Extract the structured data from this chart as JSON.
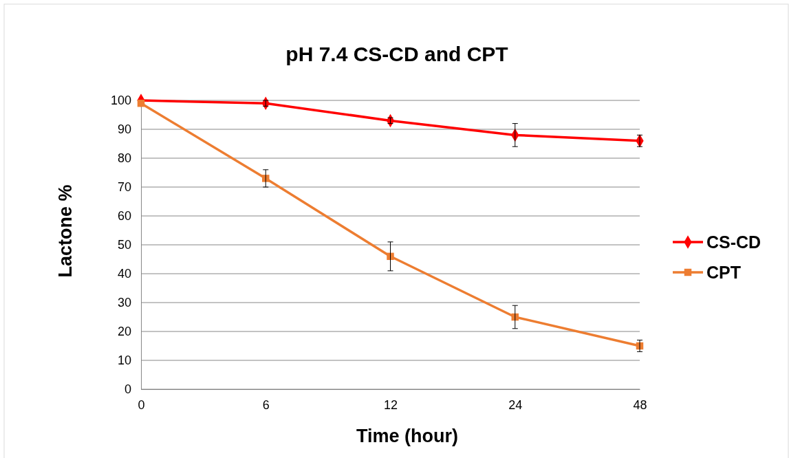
{
  "chart_data": {
    "type": "line",
    "title": "pH 7.4 CS-CD and CPT",
    "xlabel": "Time (hour)",
    "ylabel": "Lactone %",
    "categories": [
      "0",
      "6",
      "12",
      "24",
      "48"
    ],
    "ylim": [
      0,
      100
    ],
    "yticks": [
      0,
      10,
      20,
      30,
      40,
      50,
      60,
      70,
      80,
      90,
      100
    ],
    "grid": "y",
    "legend": "right",
    "line_style": "solid",
    "series": [
      {
        "name": "CS-CD",
        "color": "#ff0000",
        "marker": "diamond",
        "values": [
          100,
          99,
          93,
          88,
          86
        ],
        "errors": [
          null,
          1,
          1,
          4,
          2
        ]
      },
      {
        "name": "CPT",
        "color": "#ed7d31",
        "marker": "square",
        "values": [
          99,
          73,
          46,
          25,
          15
        ],
        "errors": [
          null,
          3,
          5,
          4,
          2
        ]
      }
    ]
  }
}
